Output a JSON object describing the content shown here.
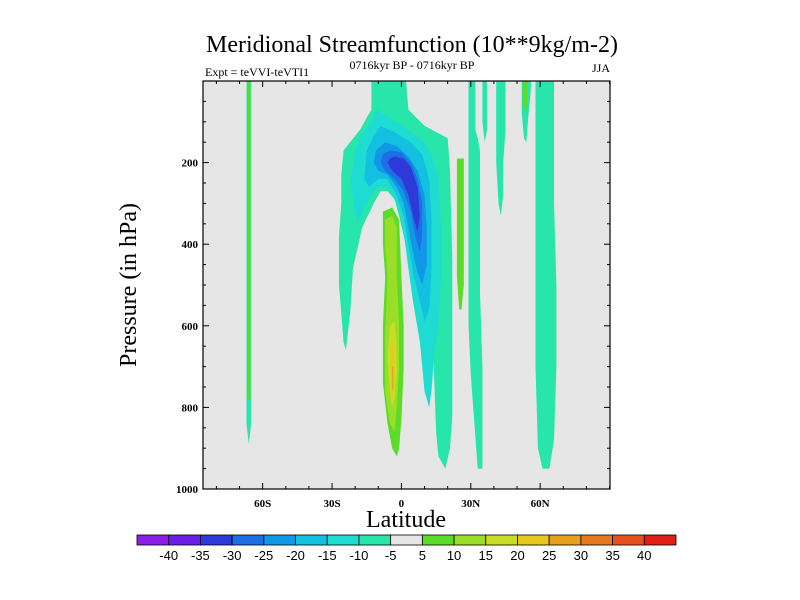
{
  "chart_data": {
    "type": "contour",
    "title": "Meridional Streamfunction (10**9kg/m-2)",
    "left_string": "Expt = teVVI-teVTI1",
    "center_string": "0716kyr BP - 0716kyr BP",
    "right_string": "JJA",
    "xlabel": "Latitude",
    "ylabel": "Pressure (in hPa)",
    "xlim": [
      -90,
      90
    ],
    "ylim": [
      1000,
      0
    ],
    "x_ticks": [
      {
        "value": -60,
        "label": "60S"
      },
      {
        "value": -30,
        "label": "30S"
      },
      {
        "value": 0,
        "label": "0"
      },
      {
        "value": 30,
        "label": "30N"
      },
      {
        "value": 60,
        "label": "60N"
      }
    ],
    "y_ticks": [
      {
        "value": 200,
        "label": "200"
      },
      {
        "value": 400,
        "label": "400"
      },
      {
        "value": 600,
        "label": "600"
      },
      {
        "value": 800,
        "label": "800"
      },
      {
        "value": 1000,
        "label": "1000"
      }
    ],
    "background_color": "#e6e6e6",
    "colorbar": {
      "levels": [
        "-40",
        "-35",
        "-30",
        "-25",
        "-20",
        "-15",
        "-10",
        "-5",
        "5",
        "10",
        "15",
        "20",
        "25",
        "30",
        "35",
        "40"
      ],
      "colors": [
        "#8c1ee6",
        "#6a1ee6",
        "#2d3ad8",
        "#1e6ee6",
        "#0f98e6",
        "#14c0e0",
        "#1edcd2",
        "#28e6aa",
        "#e6e6e6",
        "#5adc28",
        "#9ade28",
        "#c8dc28",
        "#e6c81e",
        "#e6a01e",
        "#e6781e",
        "#e6501e",
        "#e01e14"
      ]
    },
    "regions": [
      {
        "name": "band-65s",
        "value": -5,
        "color": "#28e6aa",
        "pts": [
          [
            -67,
            0
          ],
          [
            -65,
            0
          ],
          [
            -65,
            840
          ],
          [
            -66,
            890
          ],
          [
            -67,
            840
          ]
        ]
      },
      {
        "name": "band-65s-core",
        "value": 10,
        "color": "#5adc28",
        "pts": [
          [
            -66.7,
            0
          ],
          [
            -65.3,
            0
          ],
          [
            -65.3,
            780
          ],
          [
            -66.7,
            780
          ]
        ]
      },
      {
        "name": "neg-main",
        "value": -5,
        "color": "#28e6aa",
        "pts": [
          [
            -13,
            0
          ],
          [
            2,
            0
          ],
          [
            3,
            70
          ],
          [
            10,
            110
          ],
          [
            20,
            140
          ],
          [
            21,
            220
          ],
          [
            22,
            440
          ],
          [
            22,
            820
          ],
          [
            21,
            900
          ],
          [
            19,
            950
          ],
          [
            16,
            920
          ],
          [
            15,
            860
          ],
          [
            14,
            700
          ],
          [
            13,
            600
          ],
          [
            8,
            550
          ],
          [
            5,
            500
          ],
          [
            3,
            430
          ],
          [
            -1,
            330
          ],
          [
            -3,
            290
          ],
          [
            -6,
            270
          ],
          [
            -9,
            270
          ],
          [
            -12,
            300
          ],
          [
            -17,
            360
          ],
          [
            -21,
            460
          ],
          [
            -22,
            560
          ],
          [
            -24,
            660
          ],
          [
            -25,
            640
          ],
          [
            -27,
            500
          ],
          [
            -27,
            380
          ],
          [
            -26,
            300
          ],
          [
            -26,
            230
          ],
          [
            -25,
            170
          ],
          [
            -18,
            120
          ],
          [
            -13,
            70
          ]
        ]
      },
      {
        "name": "neg-10",
        "value": -10,
        "color": "#1edcd2",
        "pts": [
          [
            -11,
            70
          ],
          [
            -5,
            90
          ],
          [
            3,
            120
          ],
          [
            10,
            150
          ],
          [
            13,
            180
          ],
          [
            16,
            230
          ],
          [
            17,
            350
          ],
          [
            17,
            500
          ],
          [
            16,
            600
          ],
          [
            14,
            680
          ],
          [
            13,
            760
          ],
          [
            12,
            800
          ],
          [
            10,
            760
          ],
          [
            8,
            640
          ],
          [
            5,
            540
          ],
          [
            3,
            460
          ],
          [
            1,
            370
          ],
          [
            -2,
            300
          ],
          [
            -6,
            260
          ],
          [
            -10,
            260
          ],
          [
            -14,
            290
          ],
          [
            -19,
            350
          ],
          [
            -20,
            330
          ],
          [
            -22,
            250
          ],
          [
            -20,
            170
          ],
          [
            -17,
            130
          ],
          [
            -12,
            90
          ]
        ]
      },
      {
        "name": "neg-15",
        "value": -15,
        "color": "#14c0e0",
        "pts": [
          [
            -9,
            110
          ],
          [
            -3,
            125
          ],
          [
            4,
            150
          ],
          [
            9,
            180
          ],
          [
            12,
            240
          ],
          [
            13,
            340
          ],
          [
            13,
            460
          ],
          [
            12,
            560
          ],
          [
            10,
            590
          ],
          [
            8,
            540
          ],
          [
            5,
            470
          ],
          [
            3,
            400
          ],
          [
            1,
            330
          ],
          [
            -2,
            280
          ],
          [
            -6,
            240
          ],
          [
            -10,
            240
          ],
          [
            -14,
            260
          ],
          [
            -16,
            240
          ],
          [
            -15,
            170
          ],
          [
            -12,
            135
          ]
        ]
      },
      {
        "name": "neg-20",
        "value": -20,
        "color": "#0f98e6",
        "pts": [
          [
            -7,
            150
          ],
          [
            -2,
            160
          ],
          [
            3,
            185
          ],
          [
            7,
            220
          ],
          [
            10,
            280
          ],
          [
            11,
            360
          ],
          [
            11,
            450
          ],
          [
            9,
            500
          ],
          [
            7,
            470
          ],
          [
            5,
            420
          ],
          [
            3,
            360
          ],
          [
            1,
            300
          ],
          [
            -2,
            260
          ],
          [
            -6,
            230
          ],
          [
            -10,
            220
          ],
          [
            -12,
            200
          ],
          [
            -11,
            170
          ]
        ]
      },
      {
        "name": "neg-25",
        "value": -25,
        "color": "#1e6ee6",
        "pts": [
          [
            -5,
            170
          ],
          [
            0,
            175
          ],
          [
            4,
            200
          ],
          [
            7,
            240
          ],
          [
            9,
            300
          ],
          [
            9,
            380
          ],
          [
            8,
            420
          ],
          [
            6,
            380
          ],
          [
            4,
            320
          ],
          [
            1,
            270
          ],
          [
            -3,
            240
          ],
          [
            -7,
            220
          ],
          [
            -9,
            200
          ],
          [
            -8,
            180
          ]
        ]
      },
      {
        "name": "neg-30",
        "value": -30,
        "color": "#2d3ad8",
        "pts": [
          [
            -3,
            185
          ],
          [
            1,
            190
          ],
          [
            4,
            210
          ],
          [
            7,
            260
          ],
          [
            8,
            330
          ],
          [
            7,
            370
          ],
          [
            5,
            330
          ],
          [
            3,
            280
          ],
          [
            0,
            240
          ],
          [
            -4,
            220
          ],
          [
            -6,
            200
          ],
          [
            -5,
            190
          ]
        ]
      },
      {
        "name": "neg-right-1",
        "value": -5,
        "color": "#28e6aa",
        "pts": [
          [
            29,
            0
          ],
          [
            32,
            0
          ],
          [
            32,
            120
          ],
          [
            33,
            140
          ],
          [
            34,
            170
          ],
          [
            34,
            520
          ],
          [
            35,
            700
          ],
          [
            35,
            950
          ],
          [
            33,
            950
          ],
          [
            30,
            720
          ],
          [
            29,
            600
          ],
          [
            29,
            300
          ],
          [
            29,
            100
          ]
        ]
      },
      {
        "name": "neg-right-2",
        "value": -5,
        "color": "#28e6aa",
        "pts": [
          [
            35,
            0
          ],
          [
            37,
            0
          ],
          [
            37,
            120
          ],
          [
            36,
            150
          ],
          [
            35,
            100
          ]
        ]
      },
      {
        "name": "neg-right-3",
        "value": -5,
        "color": "#28e6aa",
        "pts": [
          [
            41,
            0
          ],
          [
            45,
            0
          ],
          [
            45,
            120
          ],
          [
            44,
            200
          ],
          [
            44,
            280
          ],
          [
            43,
            330
          ],
          [
            42,
            300
          ],
          [
            41,
            200
          ]
        ]
      },
      {
        "name": "neg-right-4",
        "value": -5,
        "color": "#28e6aa",
        "pts": [
          [
            52,
            0
          ],
          [
            56,
            0
          ],
          [
            56,
            20
          ],
          [
            55,
            80
          ],
          [
            54,
            150
          ],
          [
            53,
            140
          ],
          [
            52,
            80
          ]
        ]
      },
      {
        "name": "neg-right-5",
        "value": -5,
        "color": "#28e6aa",
        "pts": [
          [
            58,
            0
          ],
          [
            66,
            0
          ],
          [
            66,
            300
          ],
          [
            67,
            500
          ],
          [
            67,
            700
          ],
          [
            66,
            880
          ],
          [
            64,
            950
          ],
          [
            61,
            950
          ],
          [
            59,
            900
          ],
          [
            58,
            700
          ],
          [
            58,
            400
          ]
        ]
      },
      {
        "name": "pos-15n",
        "value": 10,
        "color": "#5adc28",
        "pts": [
          [
            24,
            190
          ],
          [
            27,
            190
          ],
          [
            27,
            500
          ],
          [
            26,
            560
          ],
          [
            25,
            560
          ],
          [
            24,
            480
          ]
        ]
      },
      {
        "name": "pos-main",
        "value": 10,
        "color": "#5adc28",
        "pts": [
          [
            -8,
            320
          ],
          [
            -4,
            310
          ],
          [
            -1,
            340
          ],
          [
            0,
            480
          ],
          [
            1,
            600
          ],
          [
            1,
            700
          ],
          [
            0,
            830
          ],
          [
            -1,
            900
          ],
          [
            -2,
            920
          ],
          [
            -4,
            900
          ],
          [
            -6,
            840
          ],
          [
            -8,
            740
          ],
          [
            -8,
            600
          ],
          [
            -7,
            480
          ],
          [
            -8,
            400
          ]
        ]
      },
      {
        "name": "pos-main-15",
        "value": 15,
        "color": "#9ade28",
        "pts": [
          [
            -7,
            340
          ],
          [
            -4,
            330
          ],
          [
            -2,
            360
          ],
          [
            -2,
            480
          ],
          [
            -1,
            600
          ],
          [
            -1,
            700
          ],
          [
            -2,
            800
          ],
          [
            -3,
            860
          ],
          [
            -5,
            840
          ],
          [
            -7,
            760
          ],
          [
            -7,
            620
          ],
          [
            -6,
            480
          ],
          [
            -7,
            400
          ]
        ]
      },
      {
        "name": "pos-main-20",
        "value": 20,
        "color": "#c8dc28",
        "pts": [
          [
            -5,
            600
          ],
          [
            -3,
            590
          ],
          [
            -2,
            650
          ],
          [
            -2,
            720
          ],
          [
            -3,
            780
          ],
          [
            -4,
            800
          ],
          [
            -5,
            760
          ],
          [
            -6,
            680
          ]
        ]
      },
      {
        "name": "pos-main-25",
        "value": 25,
        "color": "#e6c81e",
        "pts": [
          [
            -4.3,
            640
          ],
          [
            -3.2,
            650
          ],
          [
            -3,
            720
          ],
          [
            -3.4,
            770
          ],
          [
            -4,
            790
          ],
          [
            -4.5,
            740
          ]
        ]
      },
      {
        "name": "pos-main-30",
        "value": 30,
        "color": "#e6a01e",
        "pts": [
          [
            -4,
            700
          ],
          [
            -3.5,
            700
          ],
          [
            -3.5,
            750
          ],
          [
            -4,
            760
          ]
        ]
      },
      {
        "name": "pos-50n",
        "value": 10,
        "color": "#5adc28",
        "pts": [
          [
            52.5,
            0
          ],
          [
            54.5,
            0
          ],
          [
            54.5,
            50
          ],
          [
            53.5,
            80
          ],
          [
            52.5,
            50
          ]
        ]
      }
    ]
  }
}
